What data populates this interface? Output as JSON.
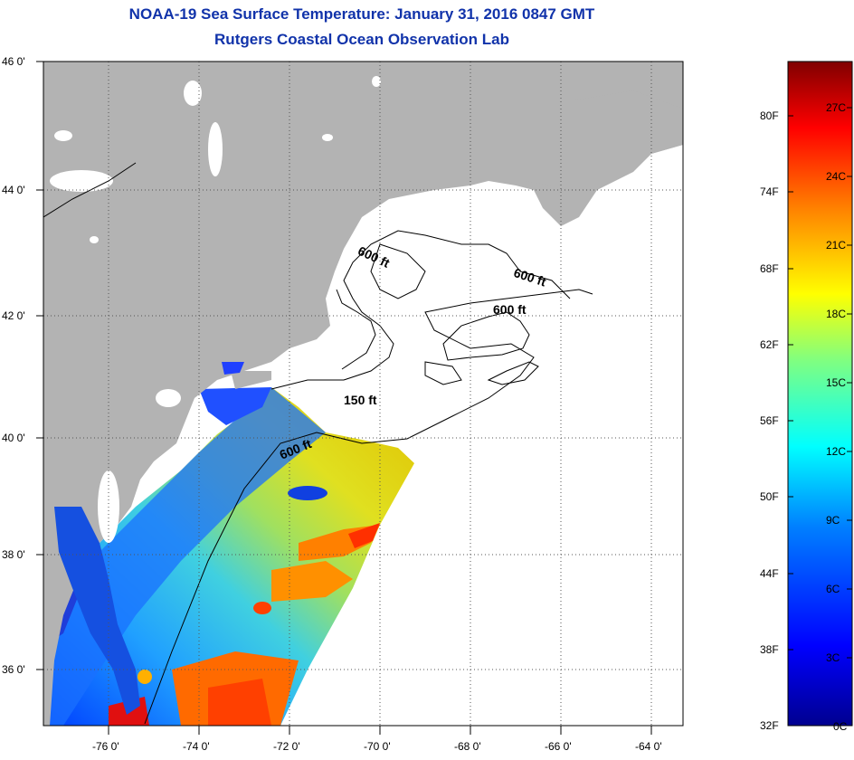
{
  "title": {
    "line1": "NOAA-19 Sea Surface Temperature:  January 31, 2016 0847 GMT",
    "line2": "Rutgers Coastal Ocean Observation Lab"
  },
  "map": {
    "lat_labels": [
      "46 0'",
      "44 0'",
      "42 0'",
      "40 0'",
      "38 0'",
      "36 0'"
    ],
    "lon_labels": [
      "-76 0'",
      "-74 0'",
      "-72 0'",
      "-70 0'",
      "-68 0'",
      "-66 0'",
      "-64 0'"
    ],
    "contour_labels": [
      "600 ft",
      "600 ft",
      "600 ft",
      "150 ft",
      "600 ft"
    ],
    "colors": {
      "land": "#b3b3b3",
      "no_data": "#ffffff",
      "contour": "#000000"
    }
  },
  "colorbar": {
    "fahrenheit_labels": [
      "80F",
      "74F",
      "68F",
      "62F",
      "56F",
      "50F",
      "44F",
      "38F",
      "32F"
    ],
    "celsius_labels": [
      "27C",
      "24C",
      "21C",
      "18C",
      "15C",
      "12C",
      "9C",
      "6C",
      "3C",
      "0C"
    ],
    "gradient_colors": [
      "#00008f",
      "#0000ff",
      "#0080ff",
      "#00ffff",
      "#80ff80",
      "#ffff00",
      "#ff8000",
      "#ff0000",
      "#800000"
    ]
  }
}
